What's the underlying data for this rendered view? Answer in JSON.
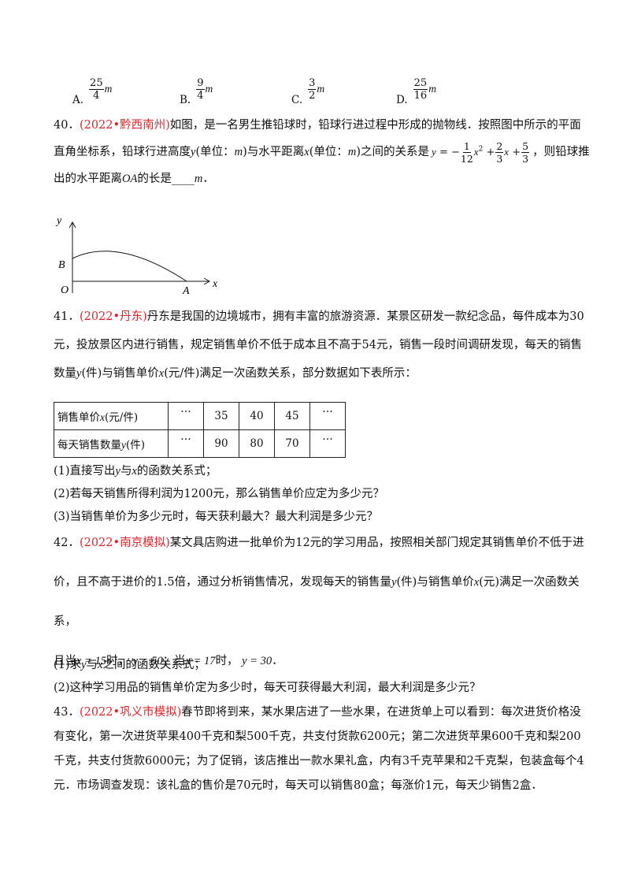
{
  "options": [
    {
      "letter": "A.",
      "num": "25",
      "den": "4",
      "unit": "m"
    },
    {
      "letter": "B.",
      "num": "9",
      "den": "4",
      "unit": "m"
    },
    {
      "letter": "C.",
      "num": "3",
      "den": "2",
      "unit": "m"
    },
    {
      "letter": "D.",
      "num": "25",
      "den": "16",
      "unit": "m"
    }
  ],
  "q40": {
    "number": "40．",
    "source": "(2022•黔西南州)",
    "runs": [
      "如图，是一名男生推铅球时，铅球行进过程中形成的抛物线．按照图中所示的平面直角坐标系，铅球行进高度",
      "y",
      "(单位：",
      "m",
      ")与水平距离",
      "x",
      "(单位：",
      "m",
      ")之间的关系是",
      "，则铅球推出的水平距离",
      "OA",
      "的长是",
      "____",
      "m",
      "．"
    ],
    "formula": {
      "lhs": "y",
      "eq": "= −",
      "f1": {
        "num": "1",
        "den": "12"
      },
      "t1": "x",
      "sup": "2",
      "plus1": "+",
      "f2": {
        "num": "2",
        "den": "3"
      },
      "t2": "x",
      "plus2": "+",
      "f3": {
        "num": "5",
        "den": "3"
      }
    },
    "figure": {
      "y_axis": "y",
      "x_axis": "x",
      "origin": "O",
      "point_a": "A",
      "point_b": "B"
    }
  },
  "q41": {
    "number": "41．",
    "source": "(2022•丹东)",
    "runs": [
      "丹东是我国的边境城市，拥有丰富的旅游资源．某景区研发一款纪念品，每件成本为30元，投放景区内进行销售，规定销售单价不低于成本且不高于54元，销售一段时间调研发现，每天的销售数量",
      "y",
      "(件)与销售单价",
      "x",
      "(元/件)满足一次函数关系，部分数据如下表所示："
    ],
    "table": {
      "rows": [
        {
          "label": [
            "销售单价",
            "x",
            "(元/件)"
          ],
          "cells": [
            "…",
            35,
            40,
            45,
            "…"
          ]
        },
        {
          "label": [
            "每天销售数量",
            "y",
            "(件)"
          ],
          "cells": [
            "…",
            90,
            80,
            70,
            "…"
          ]
        }
      ]
    },
    "parts": [
      [
        "(1)直接写出",
        "y",
        "与",
        "x",
        "的函数关系式；"
      ],
      [
        "(2)若每天销售所得利润为1200元，那么销售单价应定为多少元？"
      ],
      [
        "(3)当销售单价为多少元时，每天获利最大？最大利润是多少元？"
      ]
    ]
  },
  "q42": {
    "number": "42．",
    "source": "(2022•南京模拟)",
    "runs": [
      "某文具店购进一批单价为12元的学习用品，按照相关部门规定其销售单价不低于进价，且不高于进价的1.5倍，通过分析销售情况，发现每天的销售量",
      "y",
      "(件)与销售单价",
      "x",
      "(元)满足一次函数关系，"
    ],
    "runs2": [
      "且当",
      "x = 15",
      "时，",
      "y = 50",
      "；当",
      "x = 17",
      "时，",
      "y = 30",
      "．"
    ],
    "parts": [
      [
        "(1)求",
        "y",
        "与",
        "x",
        "之间的函数关系式；"
      ],
      [
        "(2)这种学习用品的销售单价定为多少时，每天可获得最大利润，最大利润是多少元？"
      ]
    ]
  },
  "q43": {
    "number": "43．",
    "source": "(2022•巩义市模拟)",
    "text": "春节即将到来，某水果店进了一些水果，在进货单上可以看到：每次进货价格没有变化，第一次进货苹果400千克和梨500千克，共支付货款6200元；第二次进货苹果600千克和梨200千克，共支付货款6000元；为了促销，该店推出一款水果礼盒，内有3千克苹果和2千克梨，包装盒每个4元．市场调查发现：该礼盒的售价是70元时，每天可以销售80盒；每涨价1元，每天少销售2盒．"
  }
}
